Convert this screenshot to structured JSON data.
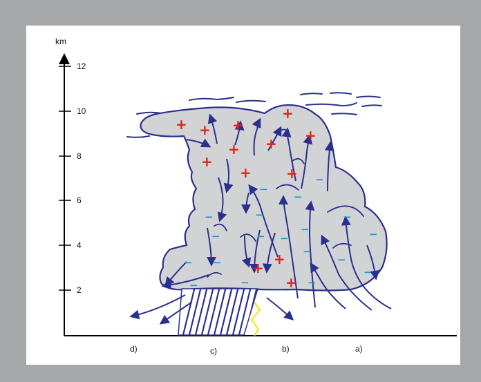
{
  "axis": {
    "unit": "km",
    "ticks": [
      "2",
      "4",
      "6",
      "8",
      "10",
      "12"
    ]
  },
  "stages": [
    "d)",
    "c)",
    "b)",
    "a)"
  ],
  "symbols": {
    "positive": "+",
    "negative": "−"
  },
  "colors": {
    "background": "#a7a8aa",
    "cloud_fill": "#d2d3d5",
    "cloud_outline": "#2b2f8e",
    "arrows": "#2b2f8e",
    "positive_charge": "#e2231a",
    "negative_charge": "#1b9ad6",
    "lightning": "#f2e600"
  }
}
